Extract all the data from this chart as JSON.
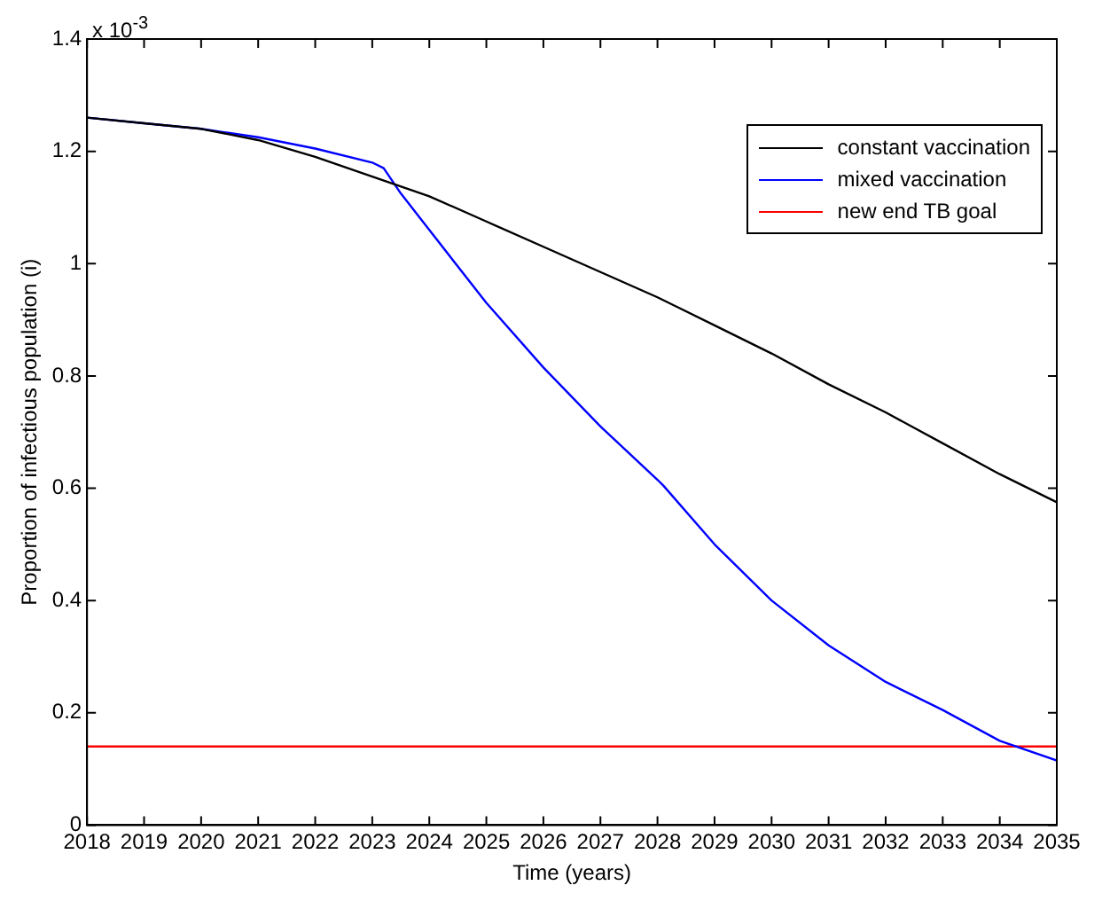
{
  "chart_data": {
    "type": "line",
    "xlabel": "Time (years)",
    "ylabel": "Proportion of infectious population (i)",
    "annotations": [
      "x 10$^{-3}$"
    ],
    "xlim": [
      2018,
      2035
    ],
    "xticks": [
      2018,
      2019,
      2020,
      2021,
      2022,
      2023,
      2024,
      2025,
      2026,
      2027,
      2028,
      2029,
      2030,
      2031,
      2032,
      2033,
      2034,
      2035
    ],
    "ylim": [
      0,
      1.4
    ],
    "yticks": [
      0,
      0.2,
      0.4,
      0.6,
      0.8,
      1,
      1.2,
      1.4
    ],
    "grid": false,
    "legend": "top right",
    "marker": "none",
    "line_style": "solid",
    "series": [
      {
        "name": "constant vaccination",
        "color": "#000000",
        "x": [
          2018,
          2019,
          2020,
          2021,
          2022,
          2023,
          2024,
          2025,
          2026,
          2027,
          2028,
          2029,
          2030,
          2031,
          2032,
          2033,
          2034,
          2035
        ],
        "values": [
          1.26,
          1.25,
          1.24,
          1.22,
          1.19,
          1.155,
          1.12,
          1.075,
          1.03,
          0.985,
          0.94,
          0.89,
          0.84,
          0.785,
          0.735,
          0.68,
          0.625,
          0.575
        ]
      },
      {
        "name": "mixed vaccination",
        "color": "#0000ff",
        "x": [
          2018,
          2019,
          2020,
          2021,
          2022,
          2023,
          2023.2,
          2023.5,
          2024,
          2025,
          2026,
          2027,
          2028,
          2028.1,
          2029,
          2030,
          2031,
          2032,
          2033,
          2034,
          2035
        ],
        "values": [
          1.26,
          1.25,
          1.24,
          1.225,
          1.205,
          1.18,
          1.17,
          1.125,
          1.06,
          0.93,
          0.815,
          0.71,
          0.615,
          0.605,
          0.5,
          0.4,
          0.32,
          0.255,
          0.205,
          0.15,
          0.115
        ]
      },
      {
        "name": "new end TB goal",
        "color": "#ff0000",
        "x": [
          2018,
          2035
        ],
        "values": [
          0.14,
          0.14
        ]
      }
    ]
  }
}
